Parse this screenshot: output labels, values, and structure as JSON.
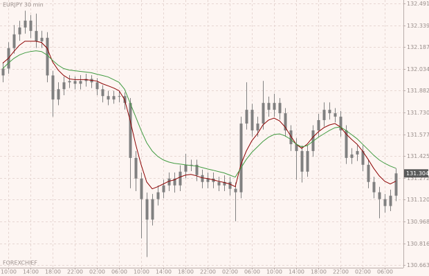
{
  "chart_data": {
    "type": "candlestick",
    "title": "EURJPY 30 min",
    "watermark": "FOREXCHIEF",
    "categories": [
      null,
      "10:00",
      null,
      null,
      null,
      "14:00",
      null,
      null,
      null,
      "18:00",
      null,
      null,
      null,
      "22:00",
      null,
      null,
      null,
      "02:00",
      null,
      null,
      null,
      "06:00",
      null,
      null,
      null,
      "10:00",
      null,
      null,
      null,
      "14:00",
      null,
      null,
      null,
      "18:00",
      null,
      null,
      null,
      "22:00",
      null,
      null,
      null,
      "02:00",
      null,
      null,
      null,
      "06:00",
      null,
      null,
      null,
      "10:00",
      null,
      null,
      null,
      "14:00",
      null,
      null,
      null,
      "18:00",
      null,
      null,
      null,
      "22:00",
      null,
      null,
      null,
      "02:00",
      null,
      null,
      null,
      "06:00",
      null,
      null
    ],
    "open": [
      131.988,
      132.036,
      132.179,
      132.275,
      132.323,
      132.371,
      132.299,
      132.227,
      132.251,
      131.988,
      131.82,
      131.892,
      131.94,
      131.949,
      131.93,
      131.949,
      131.964,
      131.94,
      131.892,
      131.844,
      131.82,
      131.844,
      131.844,
      131.796,
      131.412,
      131.268,
      131.124,
      130.981,
      131.124,
      131.172,
      131.22,
      131.268,
      131.22,
      131.316,
      131.364,
      131.364,
      131.292,
      131.244,
      131.268,
      131.244,
      131.22,
      131.244,
      131.196,
      131.172,
      131.652,
      131.748,
      131.604,
      131.652,
      131.796,
      131.748,
      131.796,
      131.724,
      131.604,
      131.508,
      131.46,
      131.316,
      131.46,
      131.604,
      131.676,
      131.748,
      131.724,
      131.7,
      131.604,
      131.412,
      131.436,
      131.46,
      131.364,
      131.244,
      131.172,
      131.124,
      131.076,
      131.148
    ],
    "high": [
      132.08,
      132.22,
      132.34,
      132.37,
      132.44,
      132.41,
      132.42,
      132.3,
      132.29,
      132.02,
      131.94,
      131.98,
      131.99,
      131.98,
      131.99,
      132.0,
      131.99,
      131.97,
      131.92,
      131.88,
      131.88,
      131.88,
      131.87,
      131.83,
      131.46,
      131.31,
      131.17,
      131.16,
      131.22,
      131.26,
      131.31,
      131.31,
      131.36,
      131.44,
      131.4,
      131.4,
      131.33,
      131.31,
      131.31,
      131.28,
      131.29,
      131.28,
      131.24,
      131.7,
      131.94,
      131.79,
      131.7,
      131.95,
      131.84,
      131.86,
      131.83,
      131.76,
      131.64,
      131.55,
      131.5,
      131.5,
      131.64,
      131.72,
      131.8,
      131.8,
      131.76,
      131.74,
      131.64,
      131.48,
      131.5,
      131.5,
      131.4,
      131.28,
      131.21,
      131.16,
      131.19,
      131.34
    ],
    "low": [
      131.94,
      132.0,
      132.14,
      132.23,
      132.28,
      132.25,
      132.18,
      132.18,
      131.94,
      131.7,
      131.78,
      131.85,
      131.9,
      131.89,
      131.89,
      131.91,
      131.9,
      131.85,
      131.8,
      131.78,
      131.79,
      131.8,
      131.75,
      131.2,
      131.18,
      130.85,
      130.72,
      130.94,
      131.08,
      131.13,
      131.18,
      131.17,
      131.18,
      131.27,
      131.32,
      131.25,
      131.2,
      131.2,
      131.2,
      131.18,
      131.18,
      131.15,
      130.97,
      131.13,
      131.61,
      131.56,
      131.56,
      131.61,
      131.7,
      131.7,
      131.68,
      131.56,
      131.46,
      131.26,
      131.24,
      131.28,
      131.42,
      131.56,
      131.63,
      131.68,
      131.66,
      131.56,
      131.37,
      131.37,
      131.39,
      131.32,
      131.2,
      131.13,
      130.99,
      131.03,
      131.04,
      131.11
    ],
    "close": [
      132.036,
      132.179,
      132.275,
      132.323,
      132.371,
      132.299,
      132.227,
      132.251,
      131.988,
      131.82,
      131.892,
      131.94,
      131.949,
      131.93,
      131.949,
      131.964,
      131.94,
      131.892,
      131.844,
      131.82,
      131.844,
      131.844,
      131.796,
      131.412,
      131.268,
      131.124,
      130.981,
      131.124,
      131.172,
      131.22,
      131.268,
      131.22,
      131.316,
      131.364,
      131.364,
      131.292,
      131.244,
      131.268,
      131.244,
      131.22,
      131.244,
      131.196,
      131.172,
      131.652,
      131.748,
      131.604,
      131.652,
      131.796,
      131.748,
      131.796,
      131.724,
      131.604,
      131.508,
      131.46,
      131.316,
      131.46,
      131.604,
      131.676,
      131.748,
      131.724,
      131.7,
      131.604,
      131.412,
      131.436,
      131.46,
      131.364,
      131.244,
      131.172,
      131.124,
      131.076,
      131.148,
      131.304
    ],
    "color": "#808080",
    "series": [
      {
        "color": "#8b0000",
        "values": [
          132.074,
          132.107,
          132.155,
          132.199,
          132.227,
          132.227,
          132.227,
          132.218,
          132.179,
          132.083,
          132.026,
          131.988,
          131.964,
          131.959,
          131.959,
          131.959,
          131.954,
          131.949,
          131.93,
          131.916,
          131.901,
          131.882,
          131.82,
          131.676,
          131.508,
          131.364,
          131.244,
          131.196,
          131.211,
          131.23,
          131.249,
          131.259,
          131.278,
          131.292,
          131.297,
          131.287,
          131.273,
          131.268,
          131.259,
          131.249,
          131.24,
          131.23,
          131.211,
          131.364,
          131.46,
          131.532,
          131.58,
          131.642,
          131.676,
          131.69,
          131.671,
          131.628,
          131.566,
          131.508,
          131.479,
          131.508,
          131.556,
          131.594,
          131.623,
          131.642,
          131.652,
          131.628,
          131.58,
          131.542,
          131.508,
          131.46,
          131.402,
          131.34,
          131.287,
          131.249,
          131.23,
          131.249
        ]
      },
      {
        "color": "#3f9a3f",
        "values": [
          132.036,
          132.074,
          132.107,
          132.131,
          132.146,
          132.155,
          132.16,
          132.155,
          132.131,
          132.093,
          132.06,
          132.036,
          132.026,
          132.021,
          132.016,
          132.012,
          132.007,
          131.997,
          131.988,
          131.978,
          131.959,
          131.94,
          131.892,
          131.796,
          131.7,
          131.604,
          131.518,
          131.46,
          131.422,
          131.398,
          131.383,
          131.374,
          131.369,
          131.364,
          131.359,
          131.355,
          131.345,
          131.335,
          131.326,
          131.316,
          131.307,
          131.292,
          131.278,
          131.34,
          131.402,
          131.451,
          131.489,
          131.527,
          131.556,
          131.575,
          131.58,
          131.566,
          131.542,
          131.508,
          131.489,
          131.498,
          131.527,
          131.556,
          131.58,
          131.604,
          131.623,
          131.628,
          131.604,
          131.575,
          131.546,
          131.508,
          131.47,
          131.431,
          131.398,
          131.374,
          131.355,
          131.34
        ]
      }
    ],
    "ylim": [
      130.645,
      132.515
    ],
    "yticks": [
      132.491,
      132.339,
      132.187,
      132.034,
      131.882,
      {
        "value": 131.73,
        "label": "131.730"
      },
      131.577,
      131.425,
      131.272,
      {
        "value": 131.12,
        "label": "131.120"
      },
      130.968,
      130.816,
      130.663
    ],
    "grid": true
  }
}
